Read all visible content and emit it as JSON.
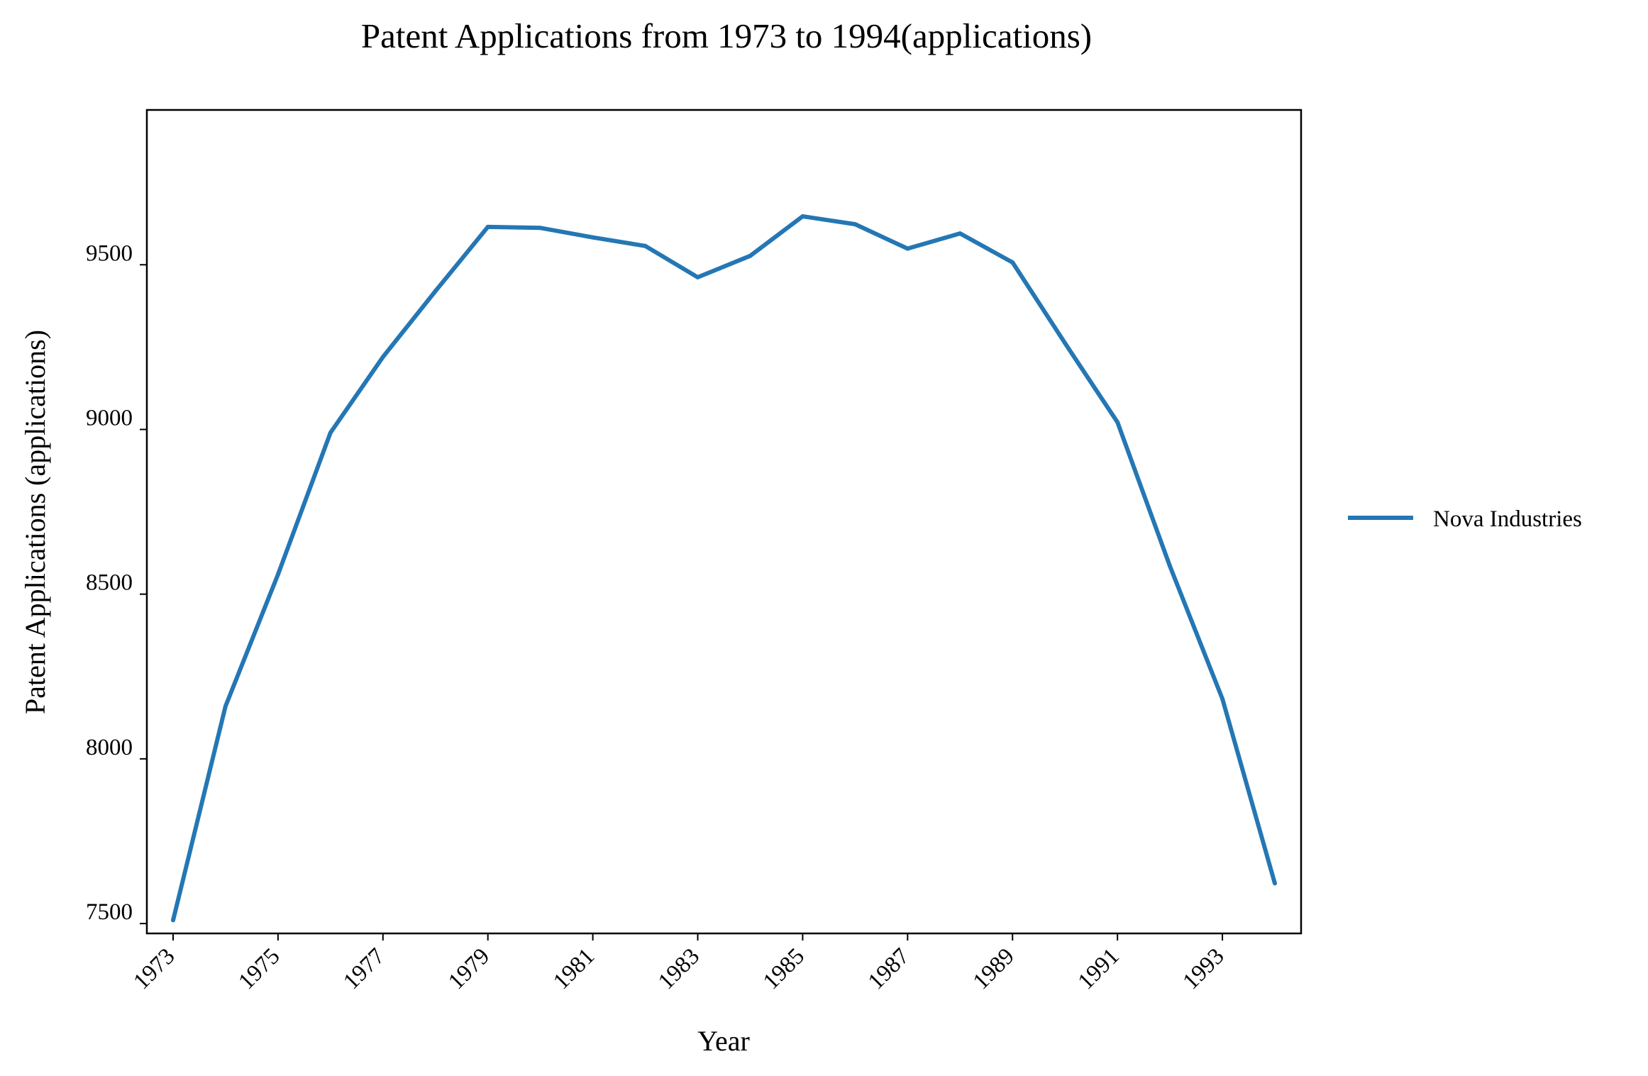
{
  "chart_data": {
    "type": "line",
    "title": "Patent Applications from 1973 to 1994(applications)",
    "xlabel": "Year",
    "ylabel": "Patent Applications (applications)",
    "x": [
      1973,
      1974,
      1975,
      1976,
      1977,
      1978,
      1979,
      1980,
      1981,
      1982,
      1983,
      1984,
      1985,
      1986,
      1987,
      1988,
      1989,
      1990,
      1991,
      1992,
      1993,
      1994
    ],
    "x_ticks": [
      "1973",
      "1975",
      "1977",
      "1979",
      "1981",
      "1983",
      "1985",
      "1987",
      "1989",
      "1991",
      "1993"
    ],
    "y_ticks": [
      "7500",
      "8000",
      "8500",
      "9000",
      "9500"
    ],
    "xlim": [
      1972.5,
      1994.5
    ],
    "ylim": [
      7470,
      9970
    ],
    "grid": false,
    "legend_position": "right",
    "series": [
      {
        "name": "Nova Industries",
        "color": "#2477b4",
        "values": [
          7510,
          8160,
          8560,
          8990,
          9220,
          9420,
          9615,
          9612,
          9583,
          9557,
          9462,
          9527,
          9647,
          9623,
          9549,
          9595,
          9507,
          9262,
          9022,
          8585,
          8182,
          7622
        ]
      }
    ]
  }
}
